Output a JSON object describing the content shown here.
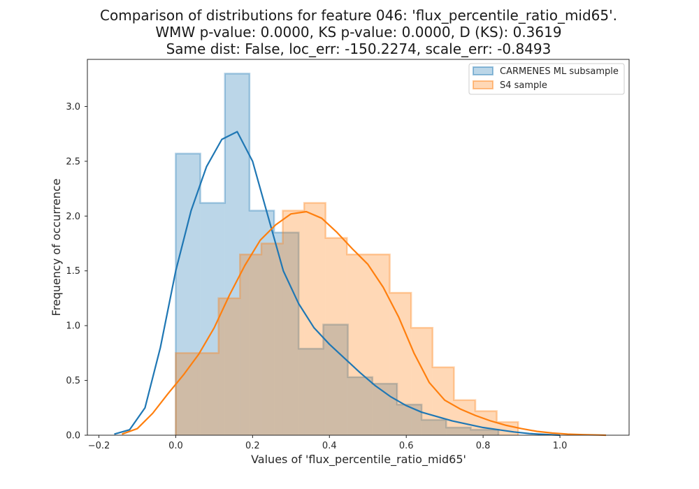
{
  "chart_data": {
    "type": "histogram-kde",
    "title": [
      "Comparison of distributions for feature 046: 'flux_percentile_ratio_mid65'.",
      "WMW p-value: 0.0000, KS p-value: 0.0000, D (KS): 0.3619",
      "Same dist: False, loc_err: -150.2274, scale_err: -0.8493"
    ],
    "xlabel": "Values of 'flux_percentile_ratio_mid65'",
    "ylabel": "Frequency of occurrence",
    "xlim": [
      -0.23,
      1.18
    ],
    "ylim": [
      0,
      3.43
    ],
    "xticks": [
      -0.2,
      0.0,
      0.2,
      0.4,
      0.6,
      0.8,
      1.0
    ],
    "xtick_labels": [
      "−0.2",
      "0.0",
      "0.2",
      "0.4",
      "0.6",
      "0.8",
      "1.0"
    ],
    "yticks": [
      0.0,
      0.5,
      1.0,
      1.5,
      2.0,
      2.5,
      3.0
    ],
    "ytick_labels": [
      "0.0",
      "0.5",
      "1.0",
      "1.5",
      "2.0",
      "2.5",
      "3.0"
    ],
    "grid": false,
    "legend_position": "top-right",
    "series": [
      {
        "name": "CARMENES ML subsample",
        "color": "#1f77b4",
        "bin_edges": [
          0.0,
          0.064,
          0.128,
          0.192,
          0.256,
          0.32,
          0.384,
          0.448,
          0.512,
          0.576,
          0.64,
          0.704,
          0.768,
          0.84
        ],
        "heights": [
          2.57,
          2.12,
          3.3,
          2.05,
          1.85,
          0.79,
          1.01,
          0.53,
          0.47,
          0.28,
          0.14,
          0.07,
          0.05
        ],
        "kde": {
          "x": [
            -0.16,
            -0.12,
            -0.08,
            -0.04,
            0.0,
            0.04,
            0.08,
            0.12,
            0.16,
            0.2,
            0.24,
            0.28,
            0.32,
            0.36,
            0.4,
            0.44,
            0.48,
            0.52,
            0.56,
            0.6,
            0.64,
            0.68,
            0.72,
            0.76,
            0.8,
            0.84,
            0.88,
            0.92,
            0.96,
            1.0
          ],
          "y": [
            0.01,
            0.05,
            0.25,
            0.8,
            1.5,
            2.05,
            2.45,
            2.7,
            2.77,
            2.5,
            2.0,
            1.5,
            1.2,
            0.98,
            0.83,
            0.7,
            0.57,
            0.45,
            0.35,
            0.27,
            0.21,
            0.17,
            0.13,
            0.1,
            0.07,
            0.05,
            0.03,
            0.015,
            0.007,
            0.0
          ]
        }
      },
      {
        "name": "S4 sample",
        "color": "#ff7f0e",
        "bin_edges": [
          0.0,
          0.0557,
          0.1114,
          0.1671,
          0.2228,
          0.2785,
          0.3342,
          0.3899,
          0.4456,
          0.5013,
          0.557,
          0.6127,
          0.6684,
          0.7241,
          0.7798,
          0.8355,
          0.8912
        ],
        "heights": [
          0.75,
          0.75,
          1.25,
          1.65,
          1.75,
          2.05,
          2.12,
          1.8,
          1.65,
          1.65,
          1.3,
          0.98,
          0.62,
          0.32,
          0.22,
          0.12
        ],
        "kde": {
          "x": [
            -0.14,
            -0.1,
            -0.06,
            -0.02,
            0.02,
            0.06,
            0.1,
            0.14,
            0.18,
            0.22,
            0.26,
            0.3,
            0.34,
            0.38,
            0.42,
            0.46,
            0.5,
            0.54,
            0.58,
            0.62,
            0.66,
            0.7,
            0.74,
            0.78,
            0.82,
            0.86,
            0.9,
            0.94,
            0.98,
            1.02,
            1.06,
            1.1,
            1.12
          ],
          "y": [
            0.01,
            0.06,
            0.2,
            0.38,
            0.55,
            0.74,
            0.98,
            1.28,
            1.55,
            1.78,
            1.92,
            2.02,
            2.04,
            1.98,
            1.85,
            1.7,
            1.56,
            1.35,
            1.08,
            0.75,
            0.48,
            0.32,
            0.24,
            0.18,
            0.13,
            0.09,
            0.06,
            0.035,
            0.02,
            0.01,
            0.005,
            0.002,
            0.0
          ]
        }
      }
    ]
  }
}
